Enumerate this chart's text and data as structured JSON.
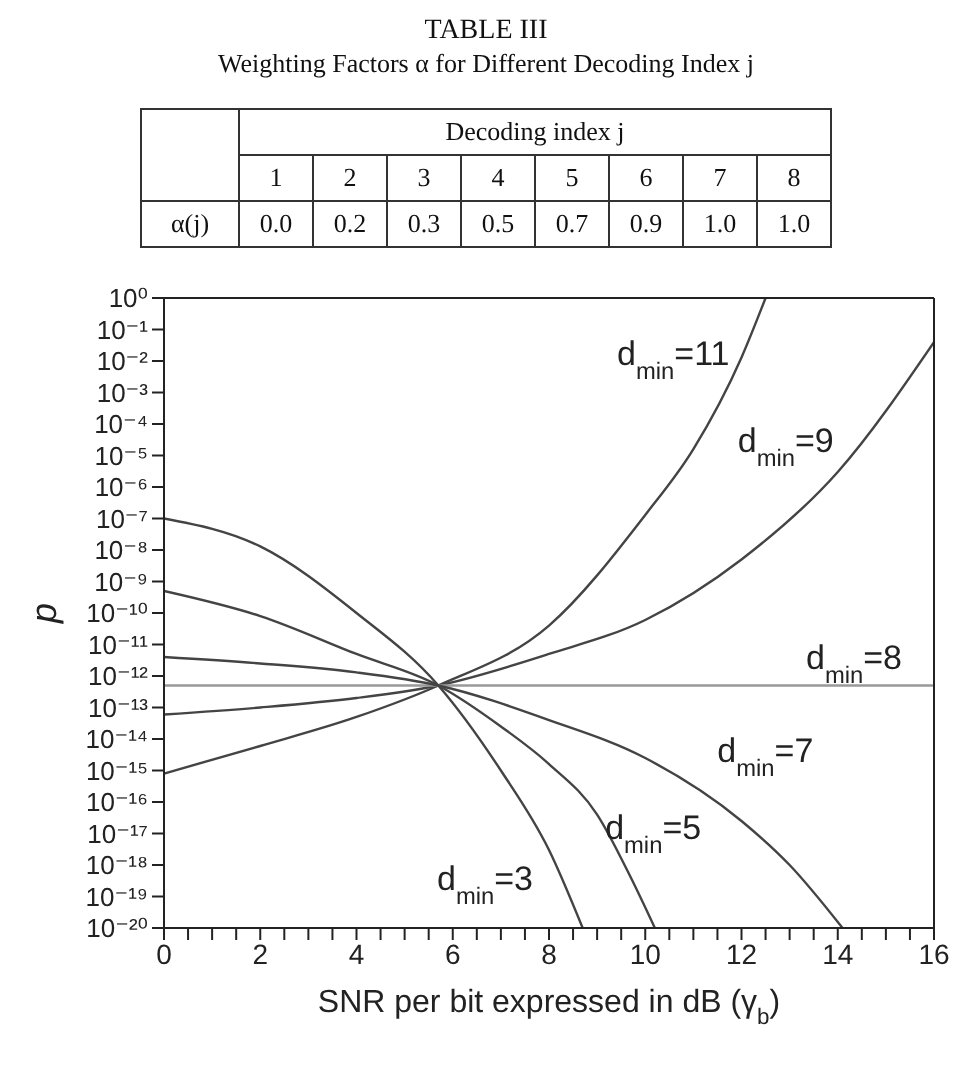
{
  "chart_data": [
    {
      "type": "heatmap",
      "title": "TABLE III",
      "subtitle": "Weighting Factors α for Different Decoding Index j",
      "xlabel": "Decoding index j",
      "categories": [
        "1",
        "2",
        "3",
        "4",
        "5",
        "6",
        "7",
        "8"
      ],
      "y_categories": [
        "α(j)"
      ],
      "cells": [
        [
          0.0,
          0.2,
          0.3,
          0.5,
          0.7,
          0.9,
          1.0,
          1.0
        ]
      ],
      "cell_labels": [
        [
          "0.0",
          "0.2",
          "0.3",
          "0.5",
          "0.7",
          "0.9",
          "1.0",
          "1.0"
        ]
      ]
    },
    {
      "type": "line",
      "xlabel": "SNR per bit expressed in dB (γ$_{b}$)",
      "ylabel": "p",
      "log": "y",
      "grid": false,
      "legend": false,
      "marker": "none",
      "line_style": "solid",
      "xlim": [
        0,
        16
      ],
      "xticks": [
        0,
        {
          "value": 0.5,
          "label": null
        },
        {
          "value": 1,
          "label": null
        },
        {
          "value": 1.5,
          "label": null
        },
        2,
        {
          "value": 2.5,
          "label": null
        },
        {
          "value": 3,
          "label": null
        },
        {
          "value": 3.5,
          "label": null
        },
        4,
        {
          "value": 4.5,
          "label": null
        },
        {
          "value": 5,
          "label": null
        },
        {
          "value": 5.5,
          "label": null
        },
        6,
        {
          "value": 6.5,
          "label": null
        },
        {
          "value": 7,
          "label": null
        },
        {
          "value": 7.5,
          "label": null
        },
        8,
        {
          "value": 8.5,
          "label": null
        },
        {
          "value": 9,
          "label": null
        },
        {
          "value": 9.5,
          "label": null
        },
        10,
        {
          "value": 10.5,
          "label": null
        },
        {
          "value": 11,
          "label": null
        },
        {
          "value": 11.5,
          "label": null
        },
        12,
        {
          "value": 12.5,
          "label": null
        },
        {
          "value": 13,
          "label": null
        },
        {
          "value": 13.5,
          "label": null
        },
        14,
        {
          "value": 14.5,
          "label": null
        },
        {
          "value": 15,
          "label": null
        },
        {
          "value": 15.5,
          "label": null
        },
        16
      ],
      "ylim": [
        1e-20,
        1
      ],
      "yticks": [
        {
          "value": 1,
          "label": "10⁰"
        },
        {
          "value": 0.1,
          "label": "10⁻¹"
        },
        {
          "value": 0.01,
          "label": "10⁻²"
        },
        {
          "value": 0.001,
          "label": "10⁻³"
        },
        {
          "value": 0.0001,
          "label": "10⁻⁴"
        },
        {
          "value": 1e-05,
          "label": "10⁻⁵"
        },
        {
          "value": 1e-06,
          "label": "10⁻⁶"
        },
        {
          "value": 1e-07,
          "label": "10⁻⁷"
        },
        {
          "value": 1e-08,
          "label": "10⁻⁸"
        },
        {
          "value": 1e-09,
          "label": "10⁻⁹"
        },
        {
          "value": 1e-10,
          "label": "10⁻¹⁰"
        },
        {
          "value": 1e-11,
          "label": "10⁻¹¹"
        },
        {
          "value": 1e-12,
          "label": "10⁻¹²"
        },
        {
          "value": 1e-13,
          "label": "10⁻¹³"
        },
        {
          "value": 1e-14,
          "label": "10⁻¹⁴"
        },
        {
          "value": 1e-15,
          "label": "10⁻¹⁵"
        },
        {
          "value": 1e-16,
          "label": "10⁻¹⁶"
        },
        {
          "value": 1e-17,
          "label": "10⁻¹⁷"
        },
        {
          "value": 1e-18,
          "label": "10⁻¹⁸"
        },
        {
          "value": 1e-19,
          "label": "10⁻¹⁹"
        },
        {
          "value": 1e-20,
          "label": "10⁻²⁰"
        }
      ],
      "series": [
        {
          "name": "d$_{min}$=11",
          "color": "#444444",
          "x": [
            0,
            2,
            4,
            5.7,
            8,
            10,
            11,
            12,
            12.5
          ],
          "values": [
            8e-16,
            6e-15,
            5e-14,
            5e-13,
            4e-11,
            1.3e-07,
            1.6e-05,
            0.013,
            1
          ]
        },
        {
          "name": "d$_{min}$=9",
          "color": "#444444",
          "x": [
            0,
            2,
            4,
            5.7,
            8,
            10,
            12,
            14,
            16
          ],
          "values": [
            6e-14,
            1e-13,
            2e-13,
            5e-13,
            5e-12,
            6e-11,
            5e-09,
            3e-06,
            0.04
          ]
        },
        {
          "name": "d$_{min}$=8",
          "color": "#999999",
          "x": [
            0,
            16
          ],
          "values": [
            5e-13,
            5e-13
          ]
        },
        {
          "name": "d$_{min}$=7",
          "color": "#444444",
          "x": [
            0,
            2,
            4,
            5.7,
            8,
            10,
            12,
            13,
            14.1
          ],
          "values": [
            4e-12,
            2.5e-12,
            1.3e-12,
            5e-13,
            4e-14,
            2.5e-15,
            2.5e-17,
            1e-18,
            1e-20
          ]
        },
        {
          "name": "d$_{min}$=5",
          "color": "#444444",
          "x": [
            0,
            2,
            4,
            5.7,
            7,
            8,
            9,
            9.7,
            10.2
          ],
          "values": [
            5e-10,
            8e-11,
            5e-12,
            5e-13,
            2.5e-14,
            1.6e-15,
            4e-17,
            4e-19,
            1e-20
          ]
        },
        {
          "name": "d$_{min}$=3",
          "color": "#444444",
          "x": [
            0,
            2,
            4,
            5.7,
            7,
            8,
            8.7
          ],
          "values": [
            1e-07,
            1.3e-08,
            1e-10,
            5e-13,
            1e-15,
            3e-18,
            1e-20
          ]
        }
      ]
    }
  ]
}
